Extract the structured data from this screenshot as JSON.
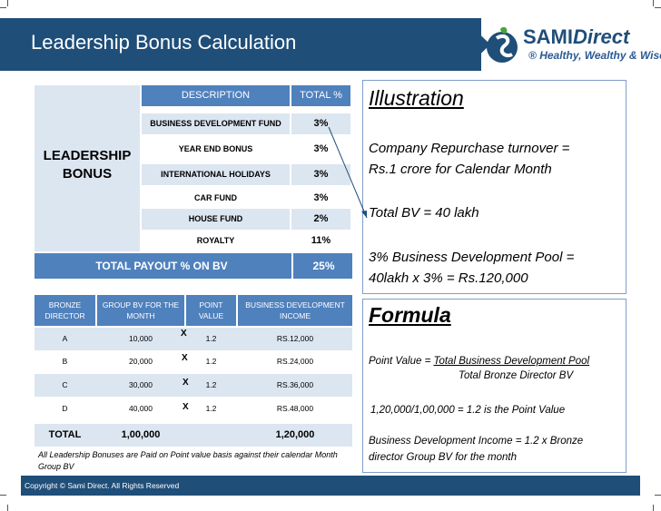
{
  "header": {
    "title": "Leadership Bonus Calculation"
  },
  "logo": {
    "name_a": "SAMI",
    "name_b": "Direct",
    "tagline": "Healthy, Wealthy & Wise",
    "reg": "®"
  },
  "leadership_label": "LEADERSHIP BONUS",
  "bonus_table": {
    "col_description": "DESCRIPTION",
    "col_total": "TOTAL %",
    "rows": [
      {
        "description": "BUSINESS DEVELOPMENT FUND",
        "total": "3%"
      },
      {
        "description": "YEAR END BONUS",
        "total": "3%"
      },
      {
        "description": "INTERNATIONAL HOLIDAYS",
        "total": "3%"
      },
      {
        "description": "CAR FUND",
        "total": "3%"
      },
      {
        "description": "HOUSE FUND",
        "total": "2%"
      },
      {
        "description": "ROYALTY",
        "total": "11%"
      }
    ],
    "payout_label": "TOTAL  PAYOUT % ON BV",
    "payout_value": "25%"
  },
  "director_table": {
    "headers": [
      "BRONZE DIRECTOR",
      "GROUP BV FOR THE MONTH",
      "POINT VALUE",
      "BUSINESS DEVELOPMENT INCOME"
    ],
    "multiply_sign": "X",
    "rows": [
      {
        "director": "A",
        "group_bv": "10,000",
        "point_value": "1.2",
        "income": "RS.12,000"
      },
      {
        "director": "B",
        "group_bv": "20,000",
        "point_value": "1.2",
        "income": "RS.24,000"
      },
      {
        "director": "C",
        "group_bv": "30,000",
        "point_value": "1.2",
        "income": "RS.36,000"
      },
      {
        "director": "D",
        "group_bv": "40,000",
        "point_value": "1.2",
        "income": "RS.48,000"
      }
    ],
    "total_label": "TOTAL",
    "total_group_bv": "1,00,000",
    "total_income": "1,20,000"
  },
  "note": "All Leadership Bonuses are Paid on Point value basis against their calendar Month Group BV",
  "illustration": {
    "title": "Illustration",
    "line1": "Company Repurchase turnover =",
    "line2": "Rs.1 crore for Calendar Month",
    "line3": "Total BV = 40 lakh",
    "line4": "3% Business Development Pool =",
    "line5": "40lakh x 3% = Rs.120,000"
  },
  "formula": {
    "title": "Formula",
    "pv_prefix": "Point Value = ",
    "pv_numerator": "Total Business Development Pool",
    "pv_denominator": "Total Bronze Director BV",
    "calc": "1,20,000/1,00,000 = 1.2 is the Point Value",
    "income_line1": "Business Development Income = 1.2 x Bronze",
    "income_line2": "director Group BV for the month"
  },
  "footer": {
    "copyright": "Copyright © Sami Direct. All Rights Reserved"
  },
  "colors": {
    "navy": "#1f4e79",
    "accent_blue": "#4f81bd",
    "light_blue": "#dce6f1"
  }
}
